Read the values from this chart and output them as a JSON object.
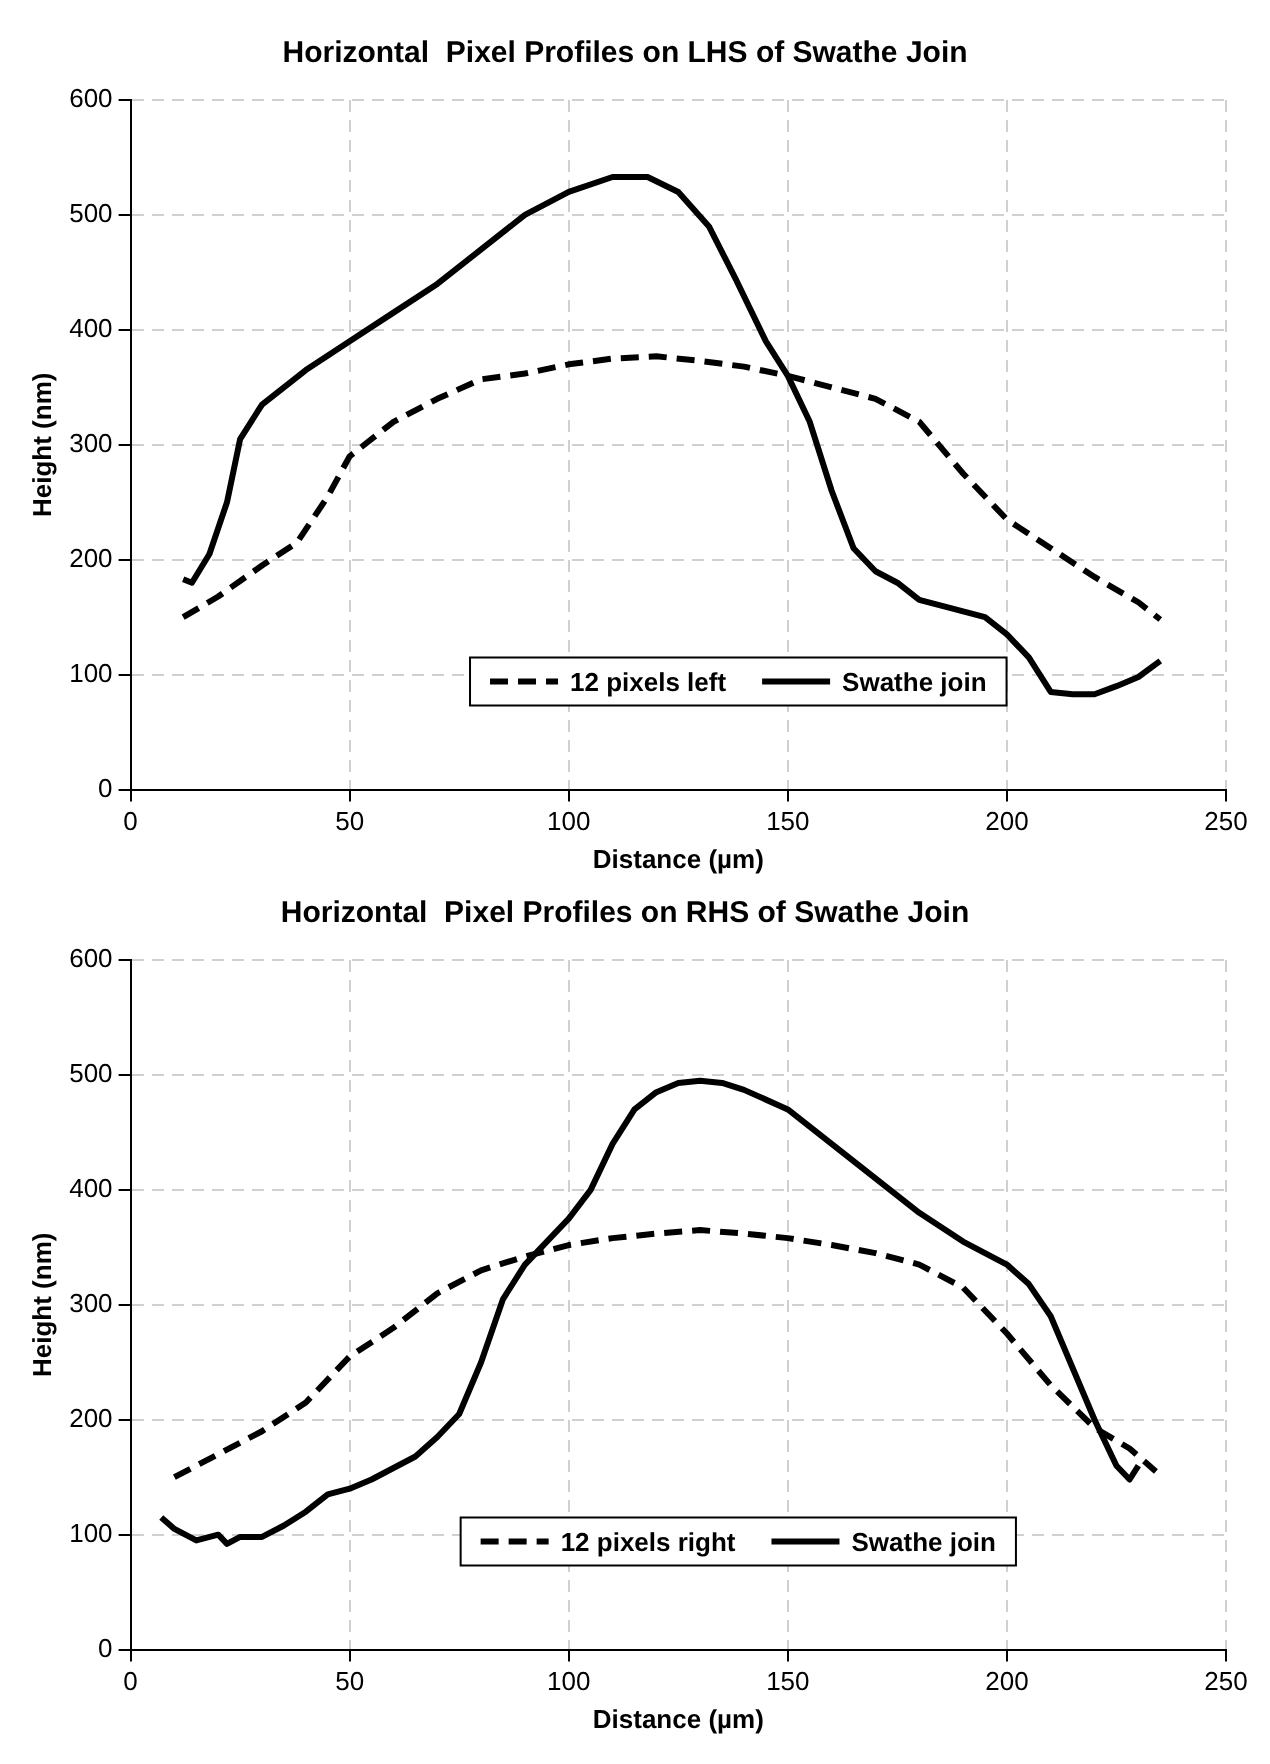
{
  "chart_data": [
    {
      "type": "line",
      "title": "Horizontal  Pixel Profiles on LHS of Swathe Join",
      "xlabel": "Distance (µm)",
      "ylabel": "Height (nm)",
      "xlim": [
        0,
        250
      ],
      "xticks": [
        0,
        50,
        100,
        150,
        200,
        250
      ],
      "ylim": [
        0,
        600
      ],
      "yticks": [
        0,
        100,
        200,
        300,
        400,
        500,
        600
      ],
      "grid": true,
      "legend": "bottom",
      "marker": "none",
      "series": [
        {
          "name": "12 pixels left",
          "color": "#000000",
          "line_style": "dashed",
          "x": [
            12,
            20,
            30,
            38,
            45,
            50,
            60,
            70,
            80,
            90,
            100,
            110,
            120,
            130,
            140,
            150,
            160,
            170,
            180,
            190,
            200,
            210,
            220,
            230,
            235
          ],
          "values": [
            150,
            168,
            195,
            215,
            255,
            290,
            320,
            340,
            357,
            362,
            370,
            375,
            377,
            373,
            368,
            360,
            350,
            340,
            320,
            275,
            235,
            210,
            185,
            163,
            148
          ]
        },
        {
          "name": "Swathe join",
          "color": "#000000",
          "line_style": "solid",
          "x": [
            12,
            14,
            18,
            22,
            25,
            30,
            40,
            50,
            60,
            70,
            80,
            90,
            100,
            110,
            118,
            125,
            132,
            138,
            145,
            150,
            155,
            160,
            165,
            170,
            175,
            180,
            190,
            195,
            200,
            205,
            210,
            215,
            220,
            225,
            230,
            235
          ],
          "values": [
            183,
            180,
            205,
            250,
            305,
            335,
            365,
            390,
            415,
            440,
            470,
            500,
            520,
            533,
            533,
            520,
            490,
            445,
            390,
            360,
            320,
            260,
            210,
            190,
            180,
            165,
            155,
            150,
            135,
            115,
            85,
            83,
            83,
            90,
            98,
            112
          ]
        }
      ]
    },
    {
      "type": "line",
      "title": "Horizontal  Pixel Profiles on RHS of Swathe Join",
      "xlabel": "Distance (µm)",
      "ylabel": "Height (nm)",
      "xlim": [
        0,
        250
      ],
      "xticks": [
        0,
        50,
        100,
        150,
        200,
        250
      ],
      "ylim": [
        0,
        600
      ],
      "yticks": [
        0,
        100,
        200,
        300,
        400,
        500,
        600
      ],
      "grid": true,
      "legend": "bottom",
      "marker": "none",
      "series": [
        {
          "name": "12 pixels right",
          "color": "#000000",
          "line_style": "dashed",
          "x": [
            10,
            20,
            30,
            40,
            50,
            60,
            70,
            80,
            90,
            100,
            110,
            120,
            130,
            140,
            150,
            160,
            170,
            180,
            190,
            200,
            210,
            220,
            228,
            234
          ],
          "values": [
            150,
            170,
            190,
            215,
            255,
            280,
            310,
            330,
            342,
            352,
            358,
            362,
            365,
            362,
            358,
            352,
            345,
            335,
            315,
            275,
            230,
            193,
            175,
            155
          ]
        },
        {
          "name": "Swathe join",
          "color": "#000000",
          "line_style": "solid",
          "x": [
            7,
            10,
            15,
            20,
            22,
            25,
            30,
            35,
            40,
            45,
            50,
            55,
            60,
            65,
            70,
            75,
            80,
            85,
            90,
            95,
            100,
            105,
            110,
            115,
            120,
            125,
            130,
            135,
            140,
            150,
            160,
            170,
            180,
            190,
            200,
            205,
            210,
            215,
            220,
            225,
            228,
            230
          ],
          "values": [
            115,
            105,
            95,
            100,
            92,
            98,
            98,
            108,
            120,
            135,
            140,
            148,
            158,
            168,
            185,
            205,
            250,
            305,
            335,
            355,
            375,
            400,
            440,
            470,
            485,
            493,
            495,
            493,
            487,
            470,
            440,
            410,
            380,
            355,
            335,
            318,
            290,
            245,
            200,
            160,
            148,
            160
          ]
        }
      ]
    }
  ]
}
